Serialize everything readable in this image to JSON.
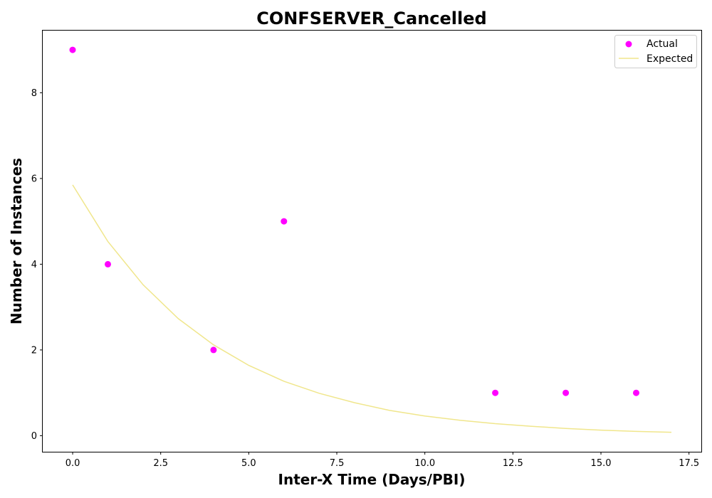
{
  "chart_data": {
    "type": "scatter",
    "title": "CONFSERVER_Cancelled",
    "xlabel": "Inter-X Time (Days/PBI)",
    "ylabel": "Number of Instances",
    "xlim": [
      -0.85,
      17.85
    ],
    "ylim": [
      -0.375,
      9.45
    ],
    "xticks": [
      0.0,
      2.5,
      5.0,
      7.5,
      10.0,
      12.5,
      15.0,
      17.5
    ],
    "xtick_labels": [
      "0.0",
      "2.5",
      "5.0",
      "7.5",
      "10.0",
      "12.5",
      "15.0",
      "17.5"
    ],
    "yticks": [
      0,
      2,
      4,
      6,
      8
    ],
    "ytick_labels": [
      "0",
      "2",
      "4",
      "6",
      "8"
    ],
    "grid": false,
    "legend_position": "top-right",
    "series": [
      {
        "name": "Actual",
        "kind": "scatter",
        "color": "#ff00ff",
        "x": [
          0,
          1,
          4,
          6,
          12,
          14,
          16
        ],
        "y": [
          9,
          4,
          2,
          5,
          1,
          1,
          1
        ]
      },
      {
        "name": "Expected",
        "kind": "line",
        "color": "#f0e68c",
        "x": [
          0,
          1,
          2,
          3,
          4,
          5,
          6,
          7,
          8,
          9,
          10,
          11,
          12,
          13,
          14,
          15,
          16,
          17
        ],
        "y": [
          5.85,
          4.53,
          3.52,
          2.73,
          2.12,
          1.64,
          1.27,
          0.99,
          0.77,
          0.59,
          0.46,
          0.36,
          0.28,
          0.22,
          0.17,
          0.13,
          0.1,
          0.08
        ]
      }
    ]
  }
}
